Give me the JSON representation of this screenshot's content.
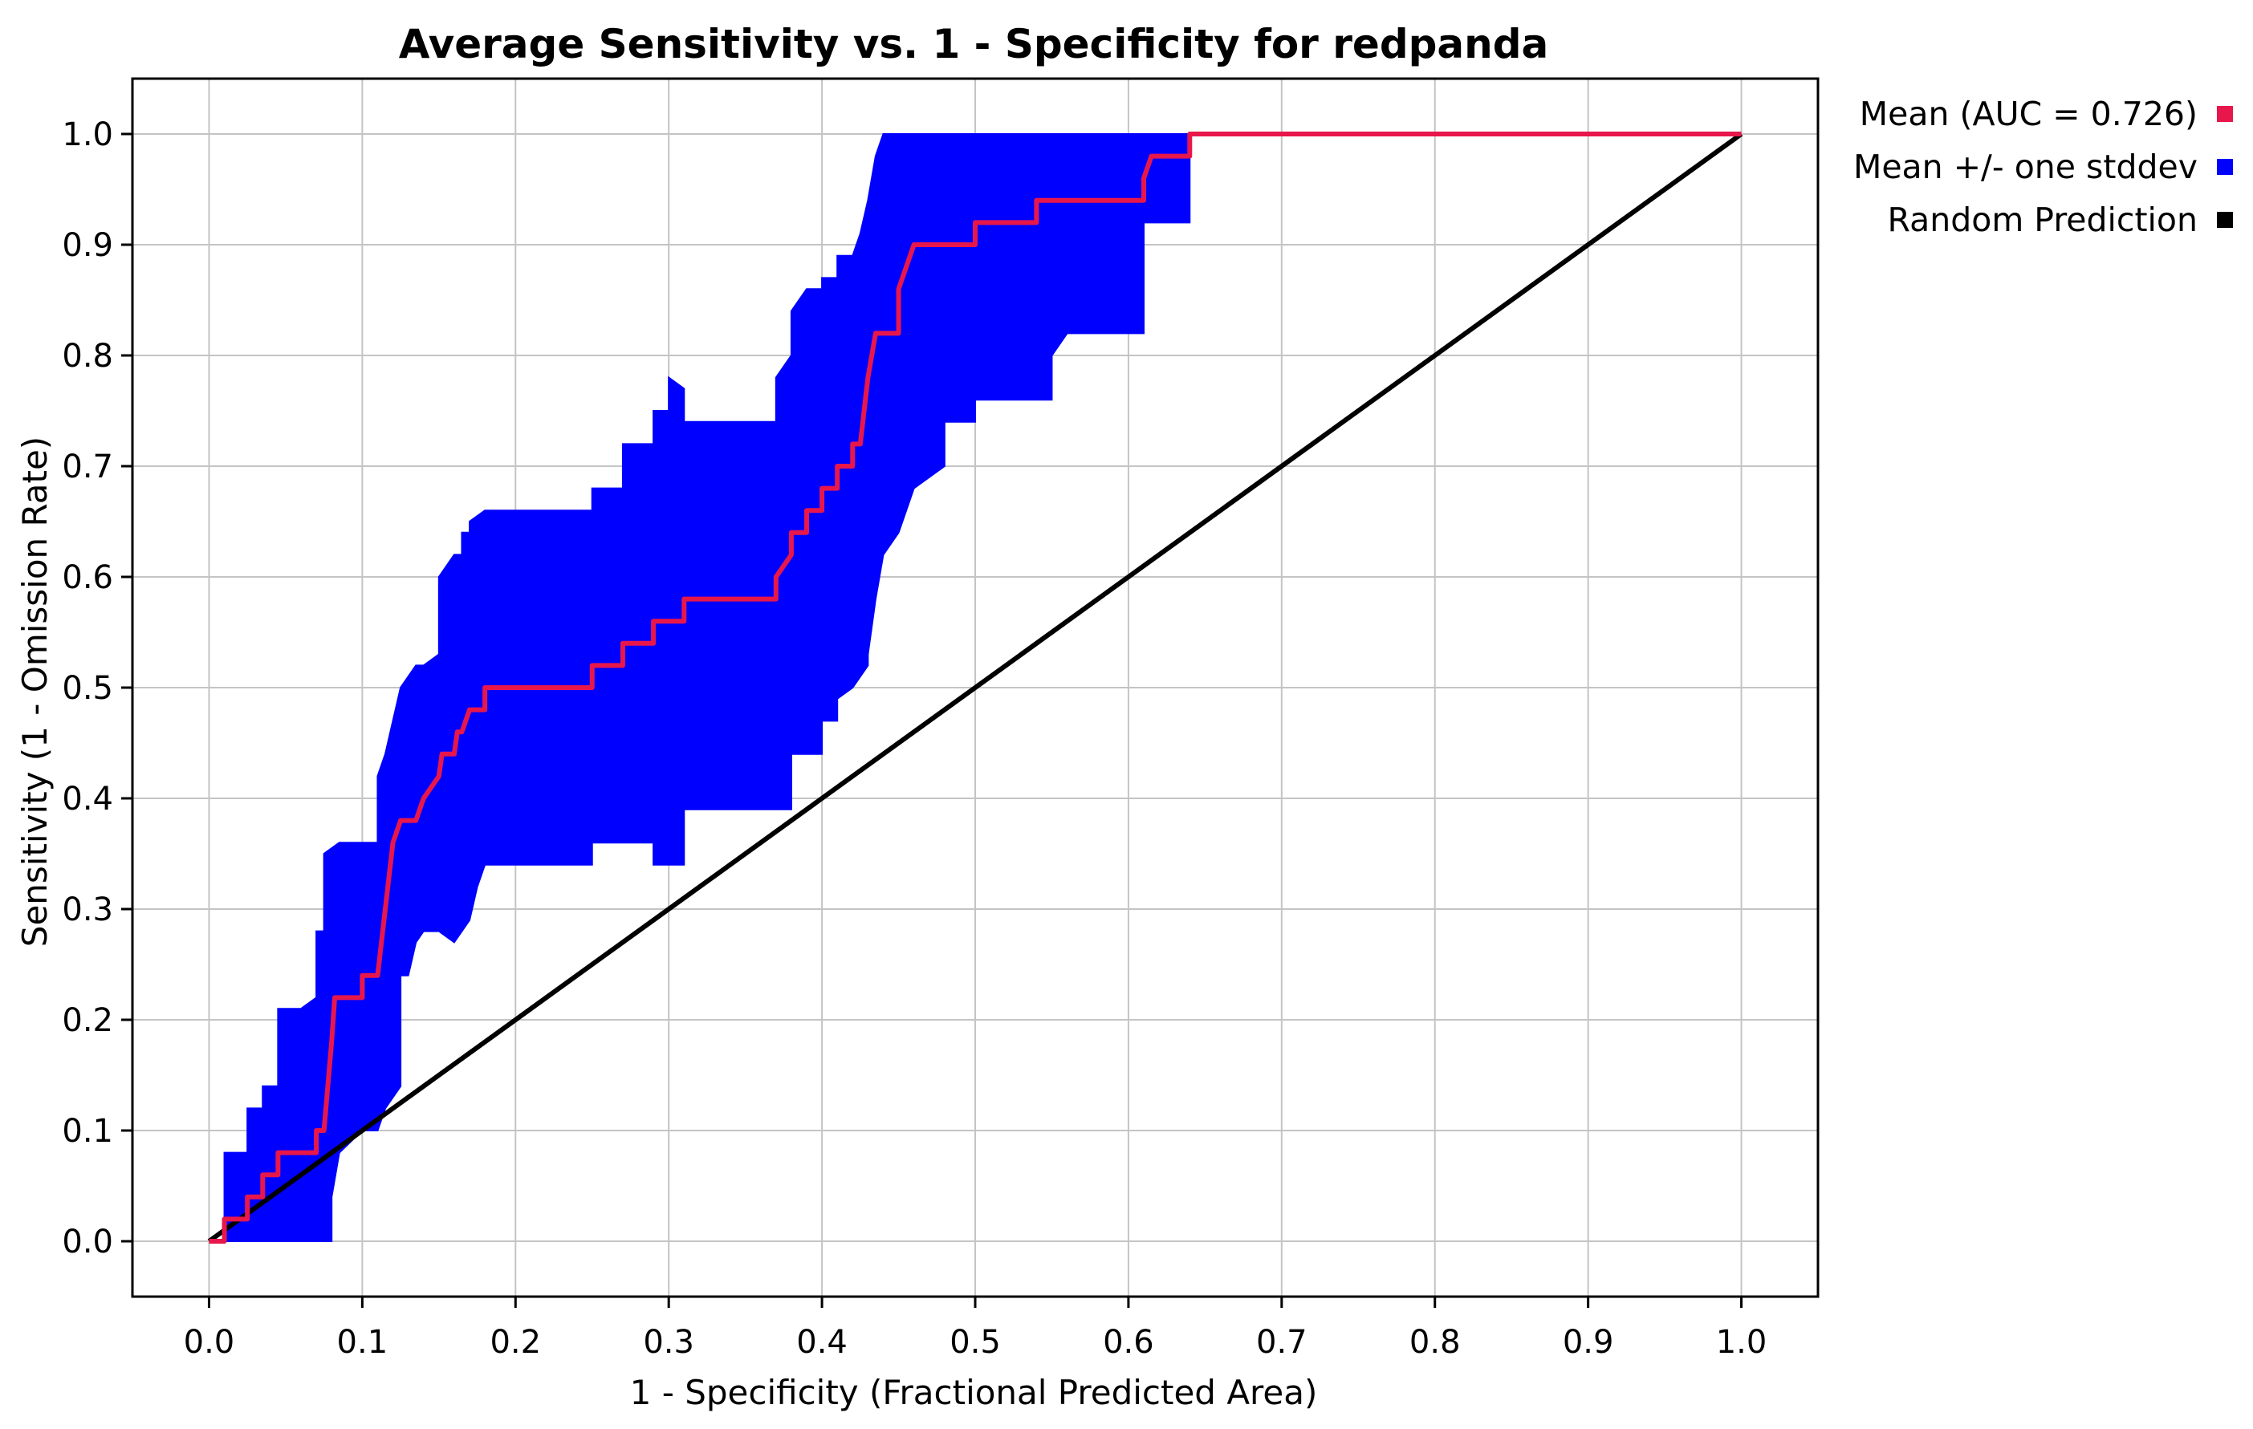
{
  "chart_data": {
    "type": "line",
    "title": "Average Sensitivity vs. 1 - Specificity for redpanda",
    "xlabel": "1 - Specificity (Fractional Predicted Area)",
    "ylabel": "Sensitivity (1 - Omission Rate)",
    "xlim": [
      -0.05,
      1.05
    ],
    "ylim": [
      -0.05,
      1.05
    ],
    "xticks": [
      "0.0",
      "0.1",
      "0.2",
      "0.3",
      "0.4",
      "0.5",
      "0.6",
      "0.7",
      "0.8",
      "0.9",
      "1.0"
    ],
    "yticks": [
      "0.0",
      "0.1",
      "0.2",
      "0.3",
      "0.4",
      "0.5",
      "0.6",
      "0.7",
      "0.8",
      "0.9",
      "1.0"
    ],
    "grid": true,
    "legend_position": "outside-right-top",
    "series": [
      {
        "name": "Mean (AUC = 0.726)",
        "color": "#e8174b",
        "style": "step-line",
        "points": [
          [
            0,
            0
          ],
          [
            0.01,
            0
          ],
          [
            0.01,
            0.02
          ],
          [
            0.025,
            0.02
          ],
          [
            0.025,
            0.04
          ],
          [
            0.035,
            0.04
          ],
          [
            0.035,
            0.06
          ],
          [
            0.045,
            0.06
          ],
          [
            0.045,
            0.08
          ],
          [
            0.07,
            0.08
          ],
          [
            0.07,
            0.1
          ],
          [
            0.075,
            0.1
          ],
          [
            0.08,
            0.18
          ],
          [
            0.082,
            0.22
          ],
          [
            0.1,
            0.22
          ],
          [
            0.1,
            0.24
          ],
          [
            0.11,
            0.24
          ],
          [
            0.115,
            0.3
          ],
          [
            0.12,
            0.36
          ],
          [
            0.125,
            0.38
          ],
          [
            0.135,
            0.38
          ],
          [
            0.14,
            0.4
          ],
          [
            0.15,
            0.42
          ],
          [
            0.152,
            0.44
          ],
          [
            0.16,
            0.44
          ],
          [
            0.162,
            0.46
          ],
          [
            0.165,
            0.46
          ],
          [
            0.17,
            0.48
          ],
          [
            0.18,
            0.48
          ],
          [
            0.18,
            0.5
          ],
          [
            0.25,
            0.5
          ],
          [
            0.25,
            0.52
          ],
          [
            0.27,
            0.52
          ],
          [
            0.27,
            0.54
          ],
          [
            0.29,
            0.54
          ],
          [
            0.29,
            0.56
          ],
          [
            0.31,
            0.56
          ],
          [
            0.31,
            0.58
          ],
          [
            0.37,
            0.58
          ],
          [
            0.37,
            0.6
          ],
          [
            0.38,
            0.62
          ],
          [
            0.38,
            0.64
          ],
          [
            0.39,
            0.64
          ],
          [
            0.39,
            0.66
          ],
          [
            0.4,
            0.66
          ],
          [
            0.4,
            0.68
          ],
          [
            0.41,
            0.68
          ],
          [
            0.41,
            0.7
          ],
          [
            0.42,
            0.7
          ],
          [
            0.42,
            0.72
          ],
          [
            0.425,
            0.72
          ],
          [
            0.43,
            0.78
          ],
          [
            0.435,
            0.82
          ],
          [
            0.45,
            0.82
          ],
          [
            0.45,
            0.86
          ],
          [
            0.455,
            0.88
          ],
          [
            0.46,
            0.9
          ],
          [
            0.5,
            0.9
          ],
          [
            0.5,
            0.92
          ],
          [
            0.54,
            0.92
          ],
          [
            0.54,
            0.94
          ],
          [
            0.61,
            0.94
          ],
          [
            0.61,
            0.96
          ],
          [
            0.615,
            0.98
          ],
          [
            0.64,
            0.98
          ],
          [
            0.64,
            1.0
          ],
          [
            1.0,
            1.0
          ]
        ]
      },
      {
        "name": "Mean +/- one stddev",
        "color": "#0000ff",
        "style": "band",
        "upper": [
          [
            0,
            0
          ],
          [
            0.01,
            0
          ],
          [
            0.01,
            0.08
          ],
          [
            0.025,
            0.08
          ],
          [
            0.025,
            0.12
          ],
          [
            0.035,
            0.12
          ],
          [
            0.035,
            0.14
          ],
          [
            0.045,
            0.14
          ],
          [
            0.045,
            0.21
          ],
          [
            0.06,
            0.21
          ],
          [
            0.07,
            0.22
          ],
          [
            0.07,
            0.28
          ],
          [
            0.075,
            0.28
          ],
          [
            0.075,
            0.35
          ],
          [
            0.085,
            0.36
          ],
          [
            0.11,
            0.36
          ],
          [
            0.11,
            0.42
          ],
          [
            0.115,
            0.44
          ],
          [
            0.12,
            0.47
          ],
          [
            0.125,
            0.5
          ],
          [
            0.135,
            0.52
          ],
          [
            0.14,
            0.52
          ],
          [
            0.15,
            0.53
          ],
          [
            0.15,
            0.6
          ],
          [
            0.16,
            0.62
          ],
          [
            0.165,
            0.62
          ],
          [
            0.165,
            0.64
          ],
          [
            0.17,
            0.64
          ],
          [
            0.17,
            0.65
          ],
          [
            0.18,
            0.66
          ],
          [
            0.25,
            0.66
          ],
          [
            0.25,
            0.68
          ],
          [
            0.27,
            0.68
          ],
          [
            0.27,
            0.72
          ],
          [
            0.29,
            0.72
          ],
          [
            0.29,
            0.75
          ],
          [
            0.3,
            0.75
          ],
          [
            0.3,
            0.78
          ],
          [
            0.31,
            0.77
          ],
          [
            0.31,
            0.74
          ],
          [
            0.37,
            0.74
          ],
          [
            0.37,
            0.78
          ],
          [
            0.38,
            0.8
          ],
          [
            0.38,
            0.84
          ],
          [
            0.39,
            0.86
          ],
          [
            0.4,
            0.86
          ],
          [
            0.4,
            0.87
          ],
          [
            0.41,
            0.87
          ],
          [
            0.41,
            0.89
          ],
          [
            0.42,
            0.89
          ],
          [
            0.425,
            0.91
          ],
          [
            0.43,
            0.94
          ],
          [
            0.435,
            0.98
          ],
          [
            0.44,
            1.0
          ],
          [
            1.0,
            1.0
          ]
        ],
        "lower": [
          [
            0,
            0
          ],
          [
            0.08,
            0
          ],
          [
            0.08,
            0.04
          ],
          [
            0.085,
            0.08
          ],
          [
            0.1,
            0.1
          ],
          [
            0.11,
            0.1
          ],
          [
            0.115,
            0.12
          ],
          [
            0.125,
            0.14
          ],
          [
            0.125,
            0.24
          ],
          [
            0.13,
            0.24
          ],
          [
            0.135,
            0.27
          ],
          [
            0.14,
            0.28
          ],
          [
            0.15,
            0.28
          ],
          [
            0.16,
            0.27
          ],
          [
            0.17,
            0.29
          ],
          [
            0.175,
            0.32
          ],
          [
            0.18,
            0.34
          ],
          [
            0.25,
            0.34
          ],
          [
            0.25,
            0.36
          ],
          [
            0.29,
            0.36
          ],
          [
            0.29,
            0.34
          ],
          [
            0.31,
            0.34
          ],
          [
            0.31,
            0.39
          ],
          [
            0.38,
            0.39
          ],
          [
            0.38,
            0.44
          ],
          [
            0.4,
            0.44
          ],
          [
            0.4,
            0.47
          ],
          [
            0.41,
            0.47
          ],
          [
            0.41,
            0.49
          ],
          [
            0.42,
            0.5
          ],
          [
            0.43,
            0.52
          ],
          [
            0.43,
            0.53
          ],
          [
            0.435,
            0.58
          ],
          [
            0.44,
            0.62
          ],
          [
            0.45,
            0.64
          ],
          [
            0.46,
            0.68
          ],
          [
            0.48,
            0.7
          ],
          [
            0.48,
            0.74
          ],
          [
            0.5,
            0.74
          ],
          [
            0.5,
            0.76
          ],
          [
            0.55,
            0.76
          ],
          [
            0.55,
            0.8
          ],
          [
            0.56,
            0.82
          ],
          [
            0.61,
            0.82
          ],
          [
            0.61,
            0.92
          ],
          [
            0.64,
            0.92
          ],
          [
            0.64,
            1.0
          ],
          [
            1.0,
            1.0
          ]
        ]
      },
      {
        "name": "Random Prediction",
        "color": "#000000",
        "style": "line",
        "points": [
          [
            0,
            0
          ],
          [
            1,
            1
          ]
        ]
      }
    ]
  }
}
